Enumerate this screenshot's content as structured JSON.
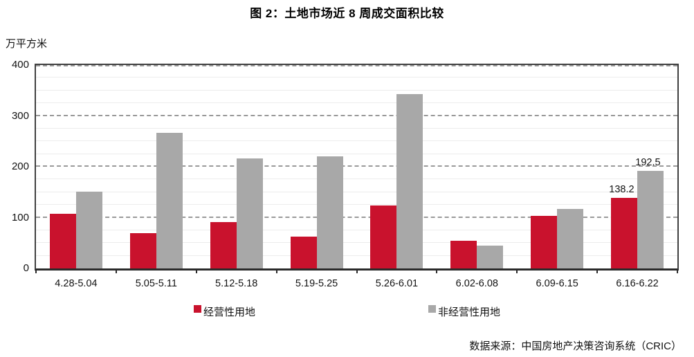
{
  "title": "图 2：土地市场近 8 周成交面积比较",
  "y_unit_label": "万平方米",
  "source": "数据来源：中国房地产决策咨询系统（CRIC）",
  "colors": {
    "series_red": "#C9122D",
    "series_gray": "#A8A8A8",
    "axis": "#3f3f3f",
    "major_grid": "#999999",
    "minor_grid": "#ececec"
  },
  "chart_data": {
    "type": "bar",
    "categories": [
      "4.28-5.04",
      "5.05-5.11",
      "5.12-5.18",
      "5.19-5.25",
      "5.26-6.01",
      "6.02-6.08",
      "6.09-6.15",
      "6.16-6.22"
    ],
    "series": [
      {
        "name": "经营性用地",
        "color": "#C9122D",
        "values": [
          107,
          69,
          91,
          62,
          124,
          54,
          103,
          138.2
        ]
      },
      {
        "name": "非经营性用地",
        "color": "#A8A8A8",
        "values": [
          151,
          267,
          216,
          221,
          343,
          45,
          117,
          192.5
        ]
      }
    ],
    "title": "图 2：土地市场近 8 周成交面积比较",
    "xlabel": "",
    "ylabel": "万平方米",
    "ylim": [
      0,
      400
    ],
    "y_ticks": [
      0,
      100,
      200,
      300,
      400
    ],
    "major_grid_step": 100,
    "minor_grid_step": 25,
    "grid": "major horizontal dashed, minor horizontal light",
    "legend_position": "bottom",
    "data_labels": [
      {
        "series": 0,
        "category_index": 7,
        "text": "138.2"
      },
      {
        "series": 1,
        "category_index": 7,
        "text": "192.5"
      }
    ]
  }
}
